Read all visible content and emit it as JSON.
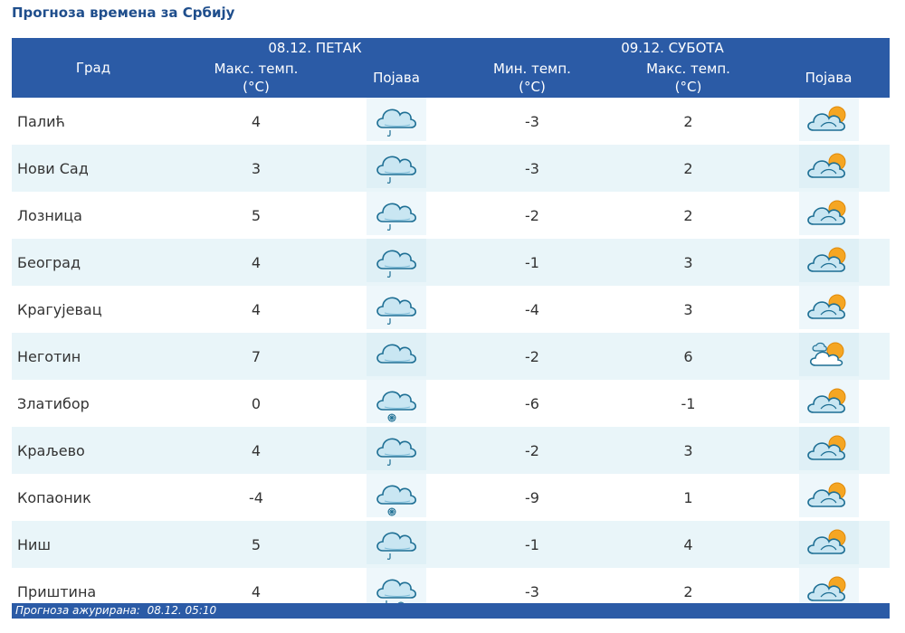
{
  "title": "Прогноза времена за Србију",
  "header": {
    "city": "Град",
    "day1": "08.12. ПЕТАК",
    "day2": "09.12. СУБОТА",
    "max_temp": "Макс. темп.",
    "min_temp": "Мин. темп.",
    "unit": "(°C)",
    "phenomenon": "Појава"
  },
  "rows": [
    {
      "city": "Палић",
      "d1_max": "4",
      "d1_icon": "cloud-rain-icon",
      "d2_min": "-3",
      "d2_max": "2",
      "d2_icon": "sun-cloud-icon"
    },
    {
      "city": "Нови Сад",
      "d1_max": "3",
      "d1_icon": "cloud-rain-icon",
      "d2_min": "-3",
      "d2_max": "2",
      "d2_icon": "sun-cloud-icon"
    },
    {
      "city": "Лозница",
      "d1_max": "5",
      "d1_icon": "cloud-rain-icon",
      "d2_min": "-2",
      "d2_max": "2",
      "d2_icon": "sun-cloud-icon"
    },
    {
      "city": "Београд",
      "d1_max": "4",
      "d1_icon": "cloud-rain-icon",
      "d2_min": "-1",
      "d2_max": "3",
      "d2_icon": "sun-cloud-icon"
    },
    {
      "city": "Крагујевац",
      "d1_max": "4",
      "d1_icon": "cloud-rain-icon",
      "d2_min": "-4",
      "d2_max": "3",
      "d2_icon": "sun-cloud-icon"
    },
    {
      "city": "Неготин",
      "d1_max": "7",
      "d1_icon": "cloud-icon",
      "d2_min": "-2",
      "d2_max": "6",
      "d2_icon": "partly-sunny-icon"
    },
    {
      "city": "Златибор",
      "d1_max": "0",
      "d1_icon": "cloud-snow-icon",
      "d2_min": "-6",
      "d2_max": "-1",
      "d2_icon": "sun-cloud-icon"
    },
    {
      "city": "Краљево",
      "d1_max": "4",
      "d1_icon": "cloud-rain-icon",
      "d2_min": "-2",
      "d2_max": "3",
      "d2_icon": "sun-cloud-icon"
    },
    {
      "city": "Копаоник",
      "d1_max": "-4",
      "d1_icon": "cloud-snow-icon",
      "d2_min": "-9",
      "d2_max": "1",
      "d2_icon": "sun-cloud-icon"
    },
    {
      "city": "Ниш",
      "d1_max": "5",
      "d1_icon": "cloud-rain-icon",
      "d2_min": "-1",
      "d2_max": "4",
      "d2_icon": "sun-cloud-icon"
    },
    {
      "city": "Приштина",
      "d1_max": "4",
      "d1_icon": "cloud-rain-snow-icon",
      "d2_min": "-3",
      "d2_max": "2",
      "d2_icon": "sun-cloud-icon"
    }
  ],
  "footer": {
    "label": "Прогноза ажурирана:",
    "value": "08.12. 05:10"
  },
  "colors": {
    "header_bg": "#2b5ba6",
    "alt_row_bg": "#e9f5f9",
    "title_color": "#1f4e8c",
    "sun": "#f5a623"
  }
}
